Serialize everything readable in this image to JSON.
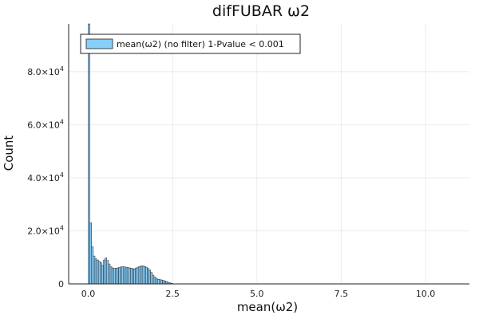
{
  "chart_data": {
    "type": "bar",
    "title": "difFUBAR ω2",
    "xlabel": "mean(ω2)",
    "ylabel": "Count",
    "xlim": [
      -0.58,
      11.3
    ],
    "ylim": [
      0,
      98000
    ],
    "grid": true,
    "legend_position": "top-left",
    "x_ticks": [
      {
        "value": 0.0,
        "label": "0.0"
      },
      {
        "value": 2.5,
        "label": "2.5"
      },
      {
        "value": 5.0,
        "label": "5.0"
      },
      {
        "value": 7.5,
        "label": "7.5"
      },
      {
        "value": 10.0,
        "label": "10.0"
      }
    ],
    "y_ticks": [
      {
        "value": 0,
        "label": "0",
        "mantissa": "",
        "exponent": ""
      },
      {
        "value": 20000,
        "label": "2.0×10^4",
        "mantissa": "2.0×10",
        "exponent": "4"
      },
      {
        "value": 40000,
        "label": "4.0×10^4",
        "mantissa": "4.0×10",
        "exponent": "4"
      },
      {
        "value": 60000,
        "label": "6.0×10^4",
        "mantissa": "6.0×10",
        "exponent": "4"
      },
      {
        "value": 80000,
        "label": "8.0×10^4",
        "mantissa": "8.0×10",
        "exponent": "4"
      }
    ],
    "bin_width": 0.05,
    "bin_start": 0.0,
    "series": [
      {
        "name": "mean(ω2) (no filter) 1-Pvalue < 0.001",
        "color": "#87cefa",
        "edge_color": "#1a1a1a",
        "values": [
          98000,
          23000,
          14000,
          10500,
          9500,
          9000,
          8500,
          8000,
          7000,
          9000,
          9800,
          8800,
          7500,
          6500,
          6000,
          5800,
          5900,
          6000,
          6200,
          6400,
          6500,
          6400,
          6300,
          6200,
          6000,
          5900,
          5700,
          5700,
          6000,
          6300,
          6600,
          6800,
          6800,
          6600,
          6300,
          5800,
          5200,
          4300,
          3300,
          2600,
          2000,
          1700,
          1600,
          1500,
          1300,
          1100,
          900,
          600,
          400,
          200
        ]
      }
    ]
  }
}
